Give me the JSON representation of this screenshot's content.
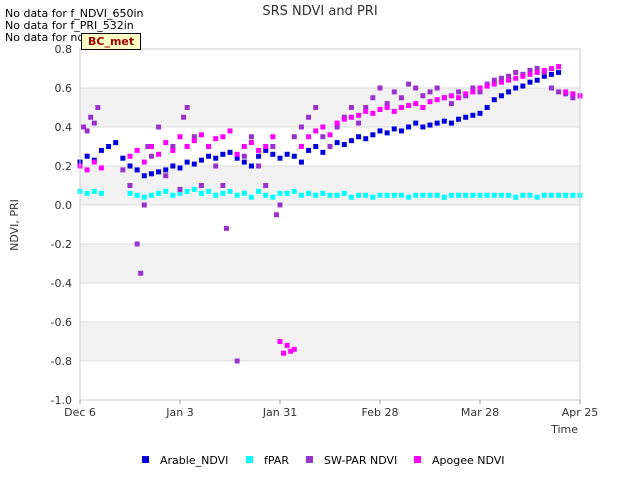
{
  "notes": [
    "No data for f_NDVI_650in",
    "No data for f_PRI_532in",
    "No data for ndvi"
  ],
  "site_badge": "BC_met",
  "colors": {
    "Arable_NDVI": "#0000dd",
    "fPAR": "#00ffff",
    "SW-PAR NDVI": "#9932cc",
    "Apogee NDVI": "#ff00ff",
    "band": "#f2f2f2"
  },
  "chart_data": {
    "type": "scatter",
    "title": "SRS NDVI and PRI",
    "xlabel": "Time",
    "ylabel": "NDVI, PRI",
    "ylim": [
      -1.0,
      0.8
    ],
    "xlim": [
      0,
      140
    ],
    "x_unit": "days since Dec 6",
    "yticks": [
      "0.8",
      "0.6",
      "0.4",
      "0.2",
      "0.0",
      "-0.2",
      "-0.4",
      "-0.6",
      "-0.8",
      "-1.0"
    ],
    "xticks": [
      {
        "label": "Dec 6",
        "x": 0
      },
      {
        "label": "Jan 3",
        "x": 28
      },
      {
        "label": "Jan 31",
        "x": 56
      },
      {
        "label": "Feb 28",
        "x": 84
      },
      {
        "label": "Mar 28",
        "x": 112
      },
      {
        "label": "Apr 25",
        "x": 140
      }
    ],
    "legend_position": "bottom",
    "series": [
      {
        "name": "Arable_NDVI",
        "color": "#0000dd",
        "x": [
          0,
          2,
          4,
          6,
          8,
          10,
          12,
          14,
          16,
          18,
          20,
          22,
          24,
          26,
          28,
          30,
          32,
          34,
          36,
          38,
          40,
          42,
          44,
          46,
          48,
          50,
          52,
          54,
          56,
          58,
          60,
          62,
          64,
          66,
          68,
          70,
          72,
          74,
          76,
          78,
          80,
          82,
          84,
          86,
          88,
          90,
          92,
          94,
          96,
          98,
          100,
          102,
          104,
          106,
          108,
          110,
          112,
          114,
          116,
          118,
          120,
          122,
          124,
          126,
          128,
          130,
          132,
          134
        ],
        "y": [
          0.22,
          0.25,
          0.23,
          0.28,
          0.3,
          0.32,
          0.24,
          0.2,
          0.18,
          0.15,
          0.16,
          0.17,
          0.18,
          0.2,
          0.19,
          0.22,
          0.21,
          0.23,
          0.25,
          0.24,
          0.26,
          0.27,
          0.24,
          0.22,
          0.2,
          0.25,
          0.28,
          0.26,
          0.24,
          0.26,
          0.25,
          0.22,
          0.28,
          0.3,
          0.27,
          0.3,
          0.32,
          0.31,
          0.33,
          0.35,
          0.34,
          0.36,
          0.38,
          0.37,
          0.39,
          0.38,
          0.4,
          0.42,
          0.4,
          0.41,
          0.42,
          0.43,
          0.42,
          0.44,
          0.45,
          0.46,
          0.47,
          0.5,
          0.54,
          0.56,
          0.58,
          0.6,
          0.61,
          0.63,
          0.64,
          0.66,
          0.67,
          0.68
        ]
      },
      {
        "name": "fPAR",
        "color": "#00ffff",
        "x": [
          0,
          2,
          4,
          6,
          14,
          16,
          18,
          20,
          22,
          24,
          26,
          28,
          30,
          32,
          34,
          36,
          38,
          40,
          42,
          44,
          46,
          48,
          50,
          52,
          54,
          56,
          58,
          60,
          62,
          64,
          66,
          68,
          70,
          72,
          74,
          76,
          78,
          80,
          82,
          84,
          86,
          88,
          90,
          92,
          94,
          96,
          98,
          100,
          102,
          104,
          106,
          108,
          110,
          112,
          114,
          116,
          118,
          120,
          122,
          124,
          126,
          128,
          130,
          132,
          134,
          136,
          138,
          140
        ],
        "y": [
          0.07,
          0.06,
          0.07,
          0.06,
          0.06,
          0.05,
          0.04,
          0.05,
          0.06,
          0.07,
          0.05,
          0.06,
          0.07,
          0.08,
          0.06,
          0.07,
          0.05,
          0.06,
          0.07,
          0.05,
          0.06,
          0.04,
          0.07,
          0.05,
          0.04,
          0.06,
          0.06,
          0.07,
          0.05,
          0.06,
          0.05,
          0.06,
          0.05,
          0.05,
          0.06,
          0.04,
          0.05,
          0.05,
          0.04,
          0.05,
          0.05,
          0.05,
          0.05,
          0.04,
          0.05,
          0.05,
          0.05,
          0.05,
          0.04,
          0.05,
          0.05,
          0.05,
          0.05,
          0.05,
          0.05,
          0.05,
          0.05,
          0.05,
          0.04,
          0.05,
          0.05,
          0.04,
          0.05,
          0.05,
          0.05,
          0.05,
          0.05,
          0.05
        ]
      },
      {
        "name": "SW-PAR NDVI",
        "color": "#9932cc",
        "x": [
          1,
          2,
          3,
          4,
          5,
          12,
          14,
          16,
          17,
          18,
          19,
          20,
          22,
          24,
          26,
          28,
          29,
          30,
          32,
          34,
          36,
          38,
          40,
          41,
          44,
          46,
          48,
          50,
          52,
          54,
          55,
          56,
          60,
          62,
          64,
          66,
          68,
          70,
          72,
          74,
          76,
          78,
          80,
          82,
          84,
          86,
          88,
          90,
          92,
          94,
          96,
          98,
          100,
          102,
          104,
          106,
          108,
          110,
          112,
          114,
          116,
          118,
          120,
          122,
          124,
          126,
          128,
          130,
          132,
          134,
          136,
          138,
          140
        ],
        "y": [
          0.4,
          0.38,
          0.45,
          0.42,
          0.5,
          0.18,
          0.1,
          -0.2,
          -0.35,
          0.0,
          0.3,
          0.25,
          0.4,
          0.15,
          0.3,
          0.08,
          0.45,
          0.5,
          0.35,
          0.1,
          0.3,
          0.2,
          0.1,
          -0.12,
          -0.8,
          0.25,
          0.35,
          0.2,
          0.1,
          0.3,
          -0.05,
          0.0,
          0.35,
          0.4,
          0.45,
          0.5,
          0.35,
          0.3,
          0.4,
          0.45,
          0.5,
          0.42,
          0.5,
          0.55,
          0.6,
          0.52,
          0.58,
          0.55,
          0.62,
          0.6,
          0.56,
          0.58,
          0.6,
          0.55,
          0.52,
          0.58,
          0.56,
          0.6,
          0.58,
          0.62,
          0.64,
          0.65,
          0.66,
          0.68,
          0.67,
          0.69,
          0.7,
          0.68,
          0.6,
          0.58,
          0.57,
          0.55,
          0.56
        ]
      },
      {
        "name": "Apogee NDVI",
        "color": "#ff00ff",
        "x": [
          0,
          2,
          4,
          6,
          14,
          16,
          18,
          20,
          22,
          24,
          26,
          28,
          30,
          32,
          34,
          36,
          38,
          40,
          42,
          44,
          46,
          48,
          50,
          52,
          54,
          56,
          57,
          58,
          59,
          60,
          62,
          64,
          66,
          68,
          70,
          72,
          74,
          76,
          78,
          80,
          82,
          84,
          86,
          88,
          90,
          92,
          94,
          96,
          98,
          100,
          102,
          104,
          106,
          108,
          110,
          112,
          114,
          116,
          118,
          120,
          122,
          124,
          126,
          128,
          130,
          132,
          134,
          136,
          138,
          140
        ],
        "y": [
          0.2,
          0.18,
          0.22,
          0.19,
          0.25,
          0.28,
          0.22,
          0.3,
          0.26,
          0.32,
          0.28,
          0.35,
          0.3,
          0.33,
          0.36,
          0.3,
          0.34,
          0.35,
          0.38,
          0.26,
          0.3,
          0.32,
          0.28,
          0.3,
          0.35,
          -0.7,
          -0.76,
          -0.72,
          -0.75,
          -0.74,
          0.3,
          0.35,
          0.38,
          0.4,
          0.36,
          0.42,
          0.44,
          0.45,
          0.46,
          0.48,
          0.47,
          0.49,
          0.5,
          0.48,
          0.5,
          0.51,
          0.52,
          0.5,
          0.53,
          0.54,
          0.55,
          0.56,
          0.55,
          0.57,
          0.58,
          0.6,
          0.61,
          0.62,
          0.63,
          0.64,
          0.65,
          0.66,
          0.67,
          0.68,
          0.69,
          0.7,
          0.71,
          0.58,
          0.57,
          0.56
        ]
      }
    ]
  }
}
